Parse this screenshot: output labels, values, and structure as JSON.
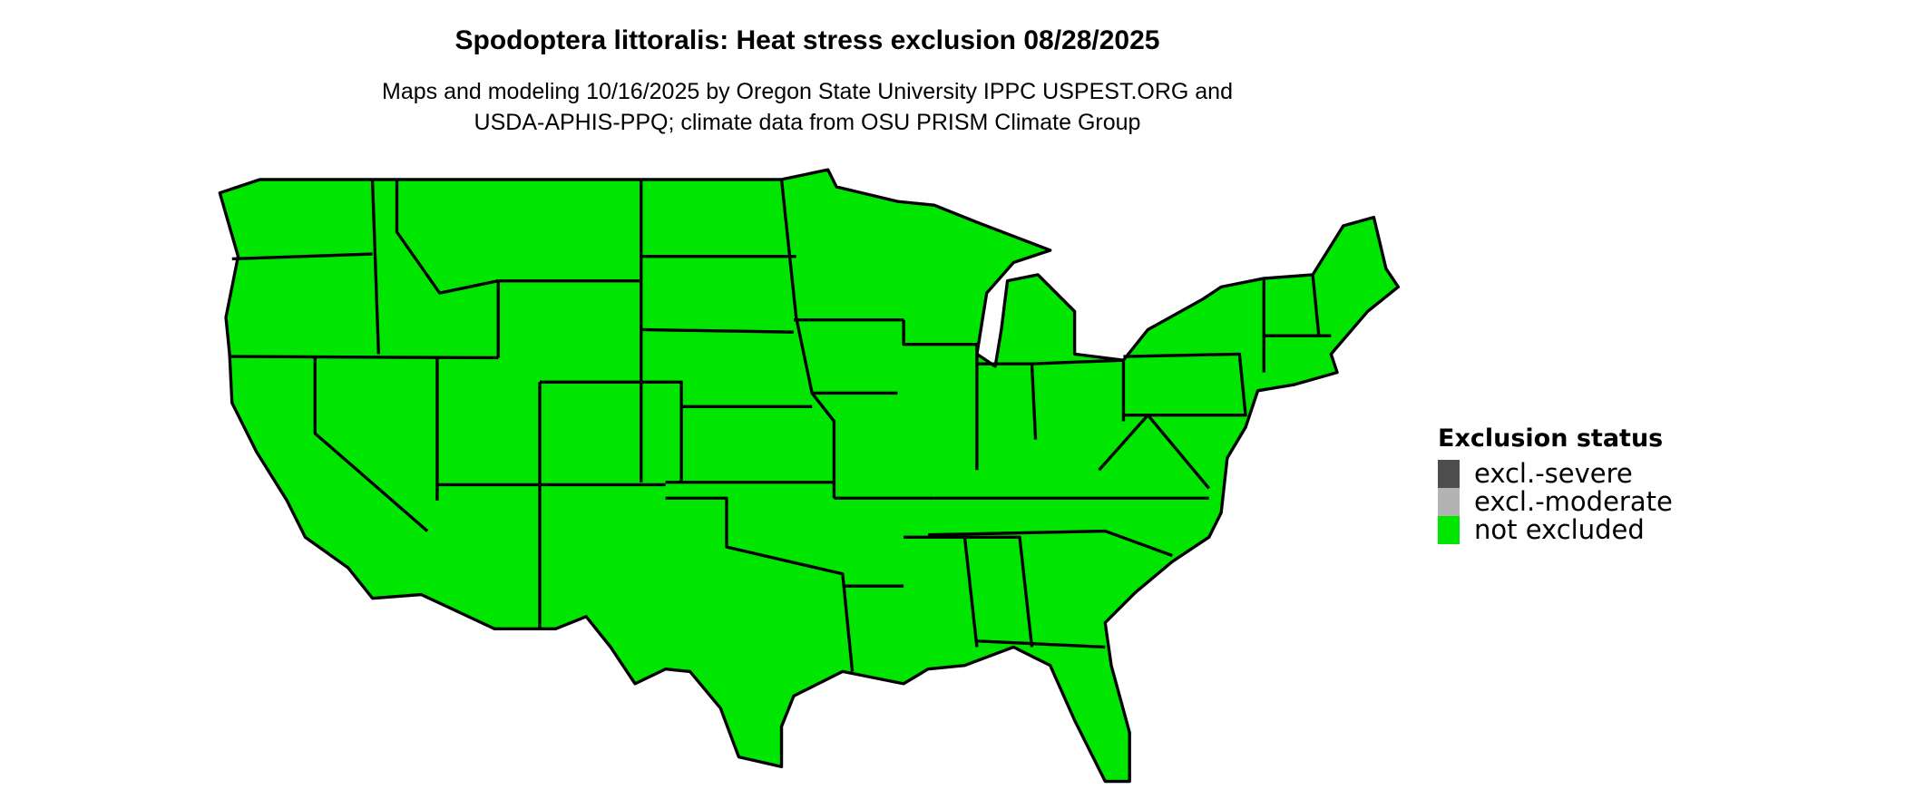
{
  "title": "Spodoptera littoralis: Heat stress exclusion 08/28/2025",
  "subtitle_lines": [
    "Maps and modeling 10/16/2025 by Oregon State University IPPC USPEST.ORG and",
    "USDA-APHIS-PPQ; climate data from OSU PRISM Climate Group"
  ],
  "map": {
    "region": "Contiguous United States",
    "predominant_status": "not excluded",
    "fill_color": "#00E600",
    "border_color": "#000000"
  },
  "legend": {
    "title": "Exclusion status",
    "items": [
      {
        "label": "excl.-severe",
        "color": "#4D4D4D"
      },
      {
        "label": "excl.-moderate",
        "color": "#B3B3B3"
      },
      {
        "label": "not excluded",
        "color": "#00E600"
      }
    ]
  }
}
